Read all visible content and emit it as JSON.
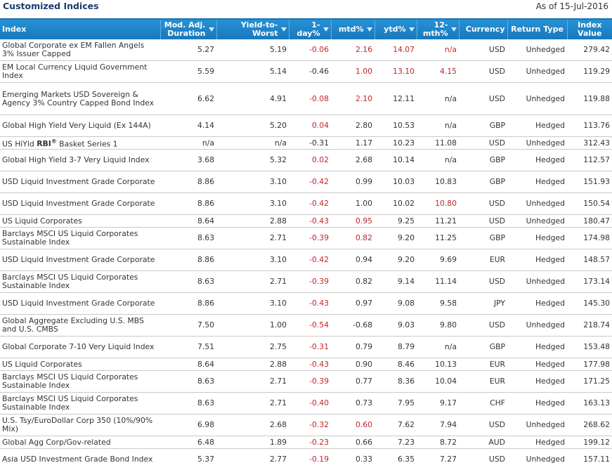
{
  "header": {
    "title": "Customized Indices",
    "as_of": "As of 15-Jul-2016"
  },
  "columns": [
    "Index",
    "Mod. Adj. Duration",
    "Yield-to-Worst",
    "1-day%",
    "mtd%",
    "ytd%",
    "12-mth%",
    "Currency",
    "Return Type",
    "Index Value"
  ],
  "rows": [
    {
      "name": "Global Corporate ex EM Fallen Angels 3% Issuer Capped",
      "dur": "5.27",
      "ytw": "5.19",
      "d1": "-0.06",
      "mtd": "2.16",
      "ytd": "14.07",
      "m12": "n/a",
      "cur": "USD",
      "ret": "Unhedged",
      "val": "279.42",
      "c": {
        "d1": "neg",
        "mtd": "neg",
        "ytd": "neg",
        "m12": "neg"
      }
    },
    {
      "name": "EM Local Currency Liquid Government Index",
      "dur": "5.59",
      "ytw": "5.14",
      "d1": "-0.46",
      "mtd": "1.00",
      "ytd": "13.10",
      "m12": "4.15",
      "cur": "USD",
      "ret": "Unhedged",
      "val": "119.29",
      "c": {
        "mtd": "neg",
        "ytd": "neg",
        "m12": "neg"
      }
    },
    {
      "name": "Emerging Markets USD Sovereign & Agency 3% Country Capped Bond Index",
      "dur": "6.62",
      "ytw": "4.91",
      "d1": "-0.08",
      "mtd": "2.10",
      "ytd": "12.11",
      "m12": "n/a",
      "cur": "USD",
      "ret": "Unhedged",
      "val": "119.88",
      "c": {
        "d1": "neg",
        "mtd": "neg"
      }
    },
    {
      "name": "Global High Yield Very Liquid (Ex 144A)",
      "dur": "4.14",
      "ytw": "5.20",
      "d1": "0.04",
      "mtd": "2.80",
      "ytd": "10.53",
      "m12": "n/a",
      "cur": "GBP",
      "ret": "Hedged",
      "val": "113.76",
      "c": {
        "d1": "neg"
      }
    },
    {
      "name": "US HiYld RBI® Basket Series 1",
      "rbi": true,
      "dur": "n/a",
      "ytw": "n/a",
      "d1": "-0.31",
      "mtd": "1.17",
      "ytd": "10.23",
      "m12": "11.08",
      "cur": "USD",
      "ret": "Unhedged",
      "val": "312.43",
      "c": {}
    },
    {
      "name": "Global High Yield 3-7 Very Liquid Index",
      "dur": "3.68",
      "ytw": "5.32",
      "d1": "0.02",
      "mtd": "2.68",
      "ytd": "10.14",
      "m12": "n/a",
      "cur": "GBP",
      "ret": "Hedged",
      "val": "112.57",
      "c": {
        "d1": "neg"
      }
    },
    {
      "name": "USD Liquid Investment Grade Corporate",
      "dur": "8.86",
      "ytw": "3.10",
      "d1": "-0.42",
      "mtd": "0.99",
      "ytd": "10.03",
      "m12": "10.83",
      "cur": "GBP",
      "ret": "Hedged",
      "val": "151.93",
      "c": {
        "d1": "neg"
      }
    },
    {
      "name": "USD Liquid Investment Grade Corporate",
      "dur": "8.86",
      "ytw": "3.10",
      "d1": "-0.42",
      "mtd": "1.00",
      "ytd": "10.02",
      "m12": "10.80",
      "cur": "USD",
      "ret": "Unhedged",
      "val": "150.54",
      "c": {
        "d1": "neg",
        "m12": "neg"
      }
    },
    {
      "name": "US Liquid Corporates",
      "dur": "8.64",
      "ytw": "2.88",
      "d1": "-0.43",
      "mtd": "0.95",
      "ytd": "9.25",
      "m12": "11.21",
      "cur": "USD",
      "ret": "Unhedged",
      "val": "180.47",
      "c": {
        "d1": "neg",
        "mtd": "neg"
      }
    },
    {
      "name": "Barclays MSCI US Liquid Corporates Sustainable Index",
      "dur": "8.63",
      "ytw": "2.71",
      "d1": "-0.39",
      "mtd": "0.82",
      "ytd": "9.20",
      "m12": "11.25",
      "cur": "GBP",
      "ret": "Hedged",
      "val": "174.98",
      "c": {
        "d1": "neg",
        "mtd": "neg"
      }
    },
    {
      "name": "USD Liquid Investment Grade Corporate",
      "dur": "8.86",
      "ytw": "3.10",
      "d1": "-0.42",
      "mtd": "0.94",
      "ytd": "9.20",
      "m12": "9.69",
      "cur": "EUR",
      "ret": "Hedged",
      "val": "148.57",
      "c": {
        "d1": "neg"
      }
    },
    {
      "name": "Barclays MSCI US Liquid Corporates Sustainable Index",
      "dur": "8.63",
      "ytw": "2.71",
      "d1": "-0.39",
      "mtd": "0.82",
      "ytd": "9.14",
      "m12": "11.14",
      "cur": "USD",
      "ret": "Unhedged",
      "val": "173.14",
      "c": {
        "d1": "neg"
      }
    },
    {
      "name": "USD Liquid Investment Grade Corporate",
      "dur": "8.86",
      "ytw": "3.10",
      "d1": "-0.43",
      "mtd": "0.97",
      "ytd": "9.08",
      "m12": "9.58",
      "cur": "JPY",
      "ret": "Hedged",
      "val": "145.30",
      "c": {
        "d1": "neg"
      }
    },
    {
      "name": "Global Aggregate Excluding U.S. MBS and U.S. CMBS",
      "dur": "7.50",
      "ytw": "1.00",
      "d1": "-0.54",
      "mtd": "-0.68",
      "ytd": "9.03",
      "m12": "9.80",
      "cur": "USD",
      "ret": "Unhedged",
      "val": "218.74",
      "c": {
        "d1": "neg"
      }
    },
    {
      "name": "Global Corporate 7-10 Very Liquid Index",
      "dur": "7.51",
      "ytw": "2.75",
      "d1": "-0.31",
      "mtd": "0.79",
      "ytd": "8.79",
      "m12": "n/a",
      "cur": "GBP",
      "ret": "Hedged",
      "val": "153.48",
      "c": {
        "d1": "neg"
      }
    },
    {
      "name": "US Liquid Corporates",
      "dur": "8.64",
      "ytw": "2.88",
      "d1": "-0.43",
      "mtd": "0.90",
      "ytd": "8.46",
      "m12": "10.13",
      "cur": "EUR",
      "ret": "Hedged",
      "val": "177.98",
      "c": {
        "d1": "neg"
      }
    },
    {
      "name": "Barclays MSCI US Liquid Corporates Sustainable Index",
      "dur": "8.63",
      "ytw": "2.71",
      "d1": "-0.39",
      "mtd": "0.77",
      "ytd": "8.36",
      "m12": "10.04",
      "cur": "EUR",
      "ret": "Hedged",
      "val": "171.25",
      "c": {
        "d1": "neg"
      }
    },
    {
      "name": "Barclays MSCI US Liquid Corporates Sustainable Index",
      "dur": "8.63",
      "ytw": "2.71",
      "d1": "-0.40",
      "mtd": "0.73",
      "ytd": "7.95",
      "m12": "9.17",
      "cur": "CHF",
      "ret": "Hedged",
      "val": "163.13",
      "c": {
        "d1": "neg"
      }
    },
    {
      "name": "U.S. Tsy/EuroDollar Corp 350 (10%/90% Mix)",
      "dur": "6.98",
      "ytw": "2.68",
      "d1": "-0.32",
      "mtd": "0.60",
      "ytd": "7.62",
      "m12": "7.94",
      "cur": "USD",
      "ret": "Unhedged",
      "val": "268.62",
      "c": {
        "d1": "neg",
        "mtd": "neg"
      }
    },
    {
      "name": "Global Agg Corp/Gov-related",
      "dur": "6.48",
      "ytw": "1.89",
      "d1": "-0.23",
      "mtd": "0.66",
      "ytd": "7.23",
      "m12": "8.72",
      "cur": "AUD",
      "ret": "Hedged",
      "val": "199.12",
      "c": {
        "d1": "neg"
      }
    },
    {
      "name": "Asia USD Investment Grade Bond Index",
      "dur": "5.37",
      "ytw": "2.77",
      "d1": "-0.19",
      "mtd": "0.33",
      "ytd": "6.35",
      "m12": "7.27",
      "cur": "USD",
      "ret": "Unhedged",
      "val": "157.11",
      "c": {
        "d1": "neg"
      }
    }
  ],
  "colors": {
    "header_bg": "#1f84c8",
    "negative": "#c0262d",
    "title": "#1b3d6d"
  },
  "icons": {
    "sort": "sort-triangle-icon"
  }
}
